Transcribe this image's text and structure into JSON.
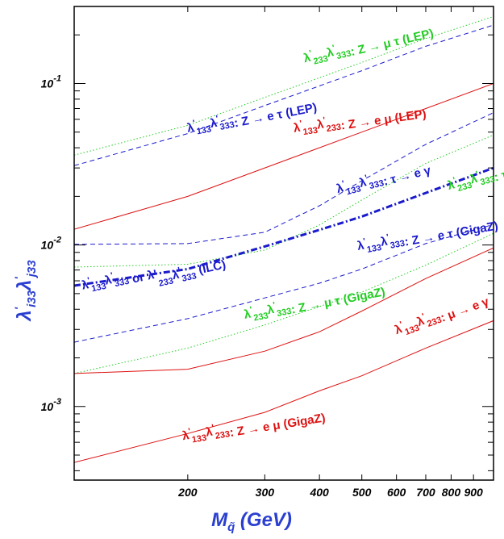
{
  "chart_data": {
    "type": "line",
    "x_scale": "log",
    "y_scale": "log",
    "xlim": [
      110,
      1000
    ],
    "ylim": [
      0.00035,
      0.3
    ],
    "xlabel": "M_q̃ (GeV)",
    "ylabel": "λ'_i33 λ'_j33",
    "x_ticks": [
      {
        "value": 200,
        "label": "200"
      },
      {
        "value": 300,
        "label": "300"
      },
      {
        "value": 400,
        "label": "400"
      },
      {
        "value": 500,
        "label": "500"
      },
      {
        "value": 600,
        "label": "600"
      },
      {
        "value": 700,
        "label": "700"
      },
      {
        "value": 800,
        "label": "800"
      },
      {
        "value": 900,
        "label": "900"
      }
    ],
    "y_ticks": [
      {
        "value": 0.001,
        "base": "10",
        "exp": "-3"
      },
      {
        "value": 0.01,
        "base": "10",
        "exp": "-2"
      },
      {
        "value": 0.1,
        "base": "10",
        "exp": "-1"
      }
    ],
    "series": [
      {
        "style": "dotted",
        "color": "#22cc22",
        "points": [
          [
            110,
            0.036
          ],
          [
            200,
            0.055
          ],
          [
            300,
            0.082
          ],
          [
            500,
            0.135
          ],
          [
            700,
            0.19
          ],
          [
            1000,
            0.26
          ]
        ]
      },
      {
        "style": "dashed",
        "color": "#1a1acc",
        "points": [
          [
            110,
            0.031
          ],
          [
            200,
            0.049
          ],
          [
            300,
            0.073
          ],
          [
            500,
            0.12
          ],
          [
            700,
            0.17
          ],
          [
            1000,
            0.23
          ]
        ]
      },
      {
        "style": "solid",
        "color": "#dd1111",
        "points": [
          [
            110,
            0.0125
          ],
          [
            200,
            0.02
          ],
          [
            300,
            0.03
          ],
          [
            500,
            0.05
          ],
          [
            700,
            0.07
          ],
          [
            1000,
            0.1
          ]
        ]
      },
      {
        "style": "dashed",
        "color": "#1a1acc",
        "points": [
          [
            110,
            0.0101
          ],
          [
            200,
            0.0102
          ],
          [
            300,
            0.012
          ],
          [
            400,
            0.0175
          ],
          [
            500,
            0.025
          ],
          [
            700,
            0.042
          ],
          [
            1000,
            0.066
          ]
        ]
      },
      {
        "style": "dotted",
        "color": "#22cc22",
        "points": [
          [
            110,
            0.0073
          ],
          [
            200,
            0.0076
          ],
          [
            300,
            0.0093
          ],
          [
            400,
            0.0133
          ],
          [
            500,
            0.019
          ],
          [
            700,
            0.032
          ],
          [
            1000,
            0.048
          ]
        ]
      },
      {
        "style": "dashdot",
        "color": "#1a1acc",
        "points": [
          [
            110,
            0.0056
          ],
          [
            200,
            0.0071
          ],
          [
            300,
            0.0098
          ],
          [
            400,
            0.0124
          ],
          [
            500,
            0.015
          ],
          [
            700,
            0.021
          ],
          [
            1000,
            0.03
          ]
        ]
      },
      {
        "style": "dashed",
        "color": "#1a1acc",
        "points": [
          [
            110,
            0.0025
          ],
          [
            200,
            0.0035
          ],
          [
            300,
            0.0047
          ],
          [
            400,
            0.0058
          ],
          [
            500,
            0.0071
          ],
          [
            700,
            0.0102
          ],
          [
            1000,
            0.0134
          ]
        ]
      },
      {
        "style": "dotted",
        "color": "#22cc22",
        "points": [
          [
            110,
            0.0016
          ],
          [
            200,
            0.0023
          ],
          [
            300,
            0.0032
          ],
          [
            500,
            0.0051
          ],
          [
            700,
            0.0075
          ],
          [
            1000,
            0.0118
          ]
        ]
      },
      {
        "style": "solid",
        "color": "#dd1111",
        "points": [
          [
            110,
            0.0016
          ],
          [
            200,
            0.0017
          ],
          [
            300,
            0.0022
          ],
          [
            400,
            0.0029
          ],
          [
            500,
            0.0039
          ],
          [
            700,
            0.0062
          ],
          [
            1000,
            0.0096
          ]
        ]
      },
      {
        "style": "solid",
        "color": "#dd1111",
        "points": [
          [
            110,
            0.00045
          ],
          [
            200,
            0.00068
          ],
          [
            300,
            0.00092
          ],
          [
            400,
            0.00125
          ],
          [
            500,
            0.00155
          ],
          [
            700,
            0.0023
          ],
          [
            1000,
            0.0034
          ]
        ]
      }
    ],
    "annotations": [
      {
        "sub1": "233",
        "sub2": "333",
        "rest": ": Z → μ τ  (LEP)",
        "color": "#22cc22",
        "x": 370,
        "y": 0.135,
        "rotate": -13
      },
      {
        "sub1": "133",
        "sub2": "333",
        "rest": ": Z → e τ  (LEP)",
        "color": "#1a1acc",
        "x": 200,
        "y": 0.05,
        "rotate": -11
      },
      {
        "sub1": "133",
        "sub2": "233",
        "rest": ": Z → e μ  (LEP)",
        "color": "#dd1111",
        "x": 350,
        "y": 0.05,
        "rotate": -8
      },
      {
        "sub1": "133",
        "sub2": "333",
        "rest": ": τ → e γ",
        "color": "#1a1acc",
        "x": 440,
        "y": 0.021,
        "rotate": -14
      },
      {
        "sub1": "233",
        "sub2": "333",
        "rest": ": τ → μ γ",
        "color": "#22cc22",
        "x": 790,
        "y": 0.022,
        "rotate": -15
      },
      {
        "sub1": "133",
        "sub2": "333",
        "rest": ": Z → e τ  (GigaZ)",
        "color": "#1a1acc",
        "x": 490,
        "y": 0.0093,
        "rotate": -10
      },
      {
        "sub1": "133",
        "sub2": "333",
        "rest": "  or  λ'",
        "color": "#1a1acc",
        "x": 115,
        "y": 0.0053,
        "rotate": -12,
        "tail_sub1": "233",
        "tail_sub2": "333",
        "tail": "  (ILC)"
      },
      {
        "sub1": "233",
        "sub2": "333",
        "rest": ": Z → μ τ  (GigaZ)",
        "color": "#22cc22",
        "x": 270,
        "y": 0.0035,
        "rotate": -11
      },
      {
        "sub1": "133",
        "sub2": "233",
        "rest": ": μ → e γ",
        "color": "#dd1111",
        "x": 600,
        "y": 0.0028,
        "rotate": -20
      },
      {
        "sub1": "133",
        "sub2": "233",
        "rest": ": Z → e μ  (GigaZ)",
        "color": "#dd1111",
        "x": 195,
        "y": 0.00062,
        "rotate": -9
      }
    ]
  }
}
